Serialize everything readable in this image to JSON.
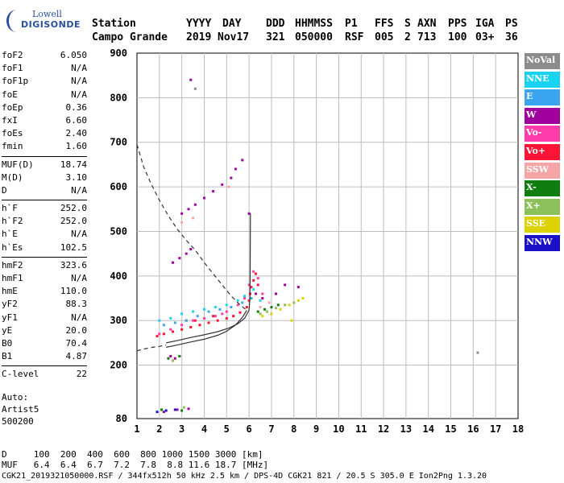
{
  "logo": {
    "top": "Lowell",
    "bottom": "DIGISONDE"
  },
  "header": {
    "labels": [
      "Station",
      "YYYY",
      "DAY",
      "DDD",
      "HHMMSS",
      "P1",
      "FFS",
      "S",
      "AXN",
      "PPS",
      "IGA",
      "PS"
    ],
    "values": [
      "Campo Grande",
      "2019",
      "Nov17",
      "321",
      "050000",
      "RSF",
      "005",
      "2",
      "713",
      "100",
      "03+",
      "36"
    ]
  },
  "params": {
    "group1": [
      {
        "k": "foF2",
        "v": "6.050"
      },
      {
        "k": "foF1",
        "v": "N/A"
      },
      {
        "k": "foF1p",
        "v": "N/A"
      },
      {
        "k": "foE",
        "v": "N/A"
      },
      {
        "k": "foEp",
        "v": "0.36"
      },
      {
        "k": "fxI",
        "v": "6.60"
      },
      {
        "k": "foEs",
        "v": "2.40"
      },
      {
        "k": "fmin",
        "v": "1.60"
      }
    ],
    "group2": [
      {
        "k": "MUF(D)",
        "v": "18.74"
      },
      {
        "k": "M(D)",
        "v": "3.10"
      },
      {
        "k": "D",
        "v": "N/A"
      }
    ],
    "group3": [
      {
        "k": "h`F",
        "v": "252.0"
      },
      {
        "k": "h`F2",
        "v": "252.0"
      },
      {
        "k": "h`E",
        "v": "N/A"
      },
      {
        "k": "h`Es",
        "v": "102.5"
      }
    ],
    "group4": [
      {
        "k": "hmF2",
        "v": "323.6"
      },
      {
        "k": "hmF1",
        "v": "N/A"
      },
      {
        "k": "hmE",
        "v": "110.0"
      },
      {
        "k": "yF2",
        "v": "88.3"
      },
      {
        "k": "yF1",
        "v": "N/A"
      },
      {
        "k": "yE",
        "v": "20.0"
      },
      {
        "k": "B0",
        "v": "70.4"
      },
      {
        "k": "B1",
        "v": "4.87"
      }
    ],
    "group5": [
      {
        "k": "C-level",
        "v": "22"
      }
    ]
  },
  "auto": {
    "line1": "Auto:",
    "line2": "Artist5",
    "line3": "500200"
  },
  "legend": [
    {
      "label": "NoVal",
      "color": "#8c8c8c"
    },
    {
      "label": "NNE",
      "color": "#19d3f0"
    },
    {
      "label": "E",
      "color": "#3aa4f0"
    },
    {
      "label": "W",
      "color": "#a0009c"
    },
    {
      "label": "Vo-",
      "color": "#ff3ca8"
    },
    {
      "label": "Vo+",
      "color": "#ff1438"
    },
    {
      "label": "SSW",
      "color": "#f5a5a5"
    },
    {
      "label": "X-",
      "color": "#0f7d0f"
    },
    {
      "label": "X+",
      "color": "#8cc05a"
    },
    {
      "label": "SSE",
      "color": "#dcd200"
    },
    {
      "label": "NNW",
      "color": "#1a10c8"
    }
  ],
  "footer": {
    "line1": "D     100  200  400  600  800 1000 1500 3000 [km]",
    "line2": "MUF   6.4  6.4  6.7  7.2  7.8  8.8 11.6 18.7 [MHz]",
    "line3": "CGK21_2019321050000.RSF / 344fx512h 50 kHz 2.5 km / DPS-4D CGK21 821 / 20.5 S 305.0 E Ion2Png 1.3.20"
  },
  "chart_data": {
    "type": "scatter",
    "title": "",
    "xlabel": "",
    "ylabel": "",
    "xlim": [
      1,
      18
    ],
    "ylim": [
      80,
      900
    ],
    "x_ticks": [
      "1",
      "2",
      "3",
      "4",
      "5",
      "6",
      "7",
      "8",
      "9",
      "10",
      "11",
      "12",
      "13",
      "14",
      "15",
      "16",
      "17",
      "18"
    ],
    "y_ticks": [
      "80",
      "200",
      "300",
      "400",
      "500",
      "600",
      "700",
      "800",
      "900"
    ],
    "grid": true,
    "legend_position": "right",
    "series": [
      {
        "name": "Vo+",
        "color": "#ff1438",
        "points": [
          [
            1.9,
            265
          ],
          [
            2.2,
            270
          ],
          [
            2.6,
            275
          ],
          [
            3.0,
            280
          ],
          [
            3.4,
            285
          ],
          [
            3.8,
            290
          ],
          [
            4.2,
            295
          ],
          [
            4.6,
            300
          ],
          [
            5.0,
            305
          ],
          [
            5.3,
            310
          ],
          [
            5.6,
            318
          ],
          [
            5.9,
            330
          ],
          [
            6.0,
            345
          ],
          [
            6.05,
            360
          ],
          [
            6.1,
            375
          ],
          [
            6.2,
            390
          ],
          [
            6.3,
            405
          ],
          [
            6.4,
            380
          ],
          [
            4.4,
            310
          ],
          [
            3.6,
            300
          ]
        ]
      },
      {
        "name": "Vo-",
        "color": "#ff3ca8",
        "points": [
          [
            2.0,
            270
          ],
          [
            2.5,
            280
          ],
          [
            3.0,
            290
          ],
          [
            3.5,
            300
          ],
          [
            4.0,
            305
          ],
          [
            4.5,
            310
          ],
          [
            5.0,
            320
          ],
          [
            5.5,
            335
          ],
          [
            5.8,
            350
          ],
          [
            6.0,
            380
          ],
          [
            6.2,
            410
          ],
          [
            6.4,
            395
          ],
          [
            6.6,
            360
          ],
          [
            3.2,
            300
          ],
          [
            4.8,
            315
          ]
        ]
      },
      {
        "name": "NNE",
        "color": "#19d3f0",
        "points": [
          [
            2.0,
            300
          ],
          [
            2.5,
            305
          ],
          [
            3.0,
            315
          ],
          [
            3.5,
            320
          ],
          [
            4.0,
            325
          ],
          [
            4.5,
            330
          ],
          [
            5.0,
            335
          ],
          [
            5.5,
            345
          ],
          [
            5.8,
            355
          ],
          [
            6.2,
            370
          ],
          [
            6.5,
            345
          ]
        ]
      },
      {
        "name": "E",
        "color": "#3aa4f0",
        "points": [
          [
            2.2,
            290
          ],
          [
            2.7,
            295
          ],
          [
            3.2,
            300
          ],
          [
            3.7,
            310
          ],
          [
            4.2,
            320
          ],
          [
            4.7,
            325
          ],
          [
            5.2,
            330
          ],
          [
            5.7,
            340
          ],
          [
            6.1,
            350
          ]
        ]
      },
      {
        "name": "W",
        "color": "#a0009c",
        "points": [
          [
            2.6,
            430
          ],
          [
            2.9,
            440
          ],
          [
            3.2,
            450
          ],
          [
            3.4,
            460
          ],
          [
            3.0,
            540
          ],
          [
            3.3,
            550
          ],
          [
            3.6,
            560
          ],
          [
            4.0,
            575
          ],
          [
            4.4,
            590
          ],
          [
            4.8,
            605
          ],
          [
            5.2,
            620
          ],
          [
            5.4,
            640
          ],
          [
            5.7,
            660
          ],
          [
            6.0,
            540
          ],
          [
            6.3,
            360
          ],
          [
            6.6,
            350
          ],
          [
            7.2,
            360
          ],
          [
            7.6,
            380
          ],
          [
            8.2,
            375
          ],
          [
            3.4,
            840
          ],
          [
            2.7,
            215
          ],
          [
            2.5,
            220
          ],
          [
            2.8,
            100
          ],
          [
            3.3,
            102
          ],
          [
            2.2,
            95
          ]
        ]
      },
      {
        "name": "SSW",
        "color": "#f5a5a5",
        "points": [
          [
            3.0,
            520
          ],
          [
            3.5,
            530
          ],
          [
            5.1,
            600
          ],
          [
            6.5,
            330
          ],
          [
            6.9,
            340
          ]
        ]
      },
      {
        "name": "X-",
        "color": "#0f7d0f",
        "points": [
          [
            6.4,
            320
          ],
          [
            6.7,
            325
          ],
          [
            7.0,
            330
          ],
          [
            7.3,
            335
          ],
          [
            2.4,
            215
          ],
          [
            2.9,
            220
          ],
          [
            2.1,
            100
          ],
          [
            3.0,
            98
          ]
        ]
      },
      {
        "name": "X+",
        "color": "#8cc05a",
        "points": [
          [
            6.5,
            315
          ],
          [
            6.8,
            320
          ],
          [
            7.2,
            328
          ],
          [
            7.6,
            335
          ],
          [
            8.0,
            340
          ],
          [
            2.6,
            210
          ],
          [
            3.1,
            105
          ]
        ]
      },
      {
        "name": "SSE",
        "color": "#dcd200",
        "points": [
          [
            6.6,
            310
          ],
          [
            7.0,
            315
          ],
          [
            7.4,
            325
          ],
          [
            7.8,
            335
          ],
          [
            8.2,
            345
          ],
          [
            8.4,
            350
          ],
          [
            7.9,
            300
          ]
        ]
      },
      {
        "name": "NNW",
        "color": "#1a10c8",
        "points": [
          [
            1.9,
            95
          ],
          [
            2.3,
            98
          ],
          [
            2.7,
            100
          ]
        ]
      },
      {
        "name": "NoVal",
        "color": "#8c8c8c",
        "points": [
          [
            16.2,
            228
          ],
          [
            3.6,
            820
          ]
        ]
      }
    ],
    "curves": [
      {
        "name": "profile",
        "style": "solid",
        "points": [
          [
            2.3,
            250
          ],
          [
            2.8,
            255
          ],
          [
            3.4,
            262
          ],
          [
            4.0,
            268
          ],
          [
            4.6,
            275
          ],
          [
            5.1,
            283
          ],
          [
            5.5,
            293
          ],
          [
            5.8,
            305
          ],
          [
            6.0,
            323
          ],
          [
            6.04,
            350
          ],
          [
            6.05,
            420
          ],
          [
            6.06,
            540
          ]
        ]
      },
      {
        "name": "profile-lower",
        "style": "solid",
        "points": [
          [
            2.3,
            240
          ],
          [
            2.8,
            245
          ],
          [
            3.4,
            252
          ],
          [
            4.0,
            258
          ],
          [
            4.6,
            267
          ],
          [
            5.0,
            276
          ],
          [
            5.4,
            290
          ],
          [
            5.7,
            307
          ],
          [
            5.9,
            323
          ]
        ]
      },
      {
        "name": "extrapolated-bottom",
        "style": "dashed",
        "points": [
          [
            1.0,
            232
          ],
          [
            1.3,
            236
          ],
          [
            1.7,
            240
          ],
          [
            2.0,
            242
          ],
          [
            2.3,
            245
          ]
        ]
      },
      {
        "name": "extrapolated-top",
        "style": "dashed",
        "points": [
          [
            1.0,
            695
          ],
          [
            1.3,
            645
          ],
          [
            1.6,
            610
          ],
          [
            2.0,
            570
          ],
          [
            2.4,
            535
          ],
          [
            2.8,
            505
          ],
          [
            3.2,
            480
          ],
          [
            3.6,
            458
          ],
          [
            4.0,
            430
          ],
          [
            4.4,
            405
          ],
          [
            4.8,
            380
          ],
          [
            5.2,
            355
          ],
          [
            5.6,
            335
          ],
          [
            5.9,
            323
          ]
        ]
      }
    ]
  }
}
